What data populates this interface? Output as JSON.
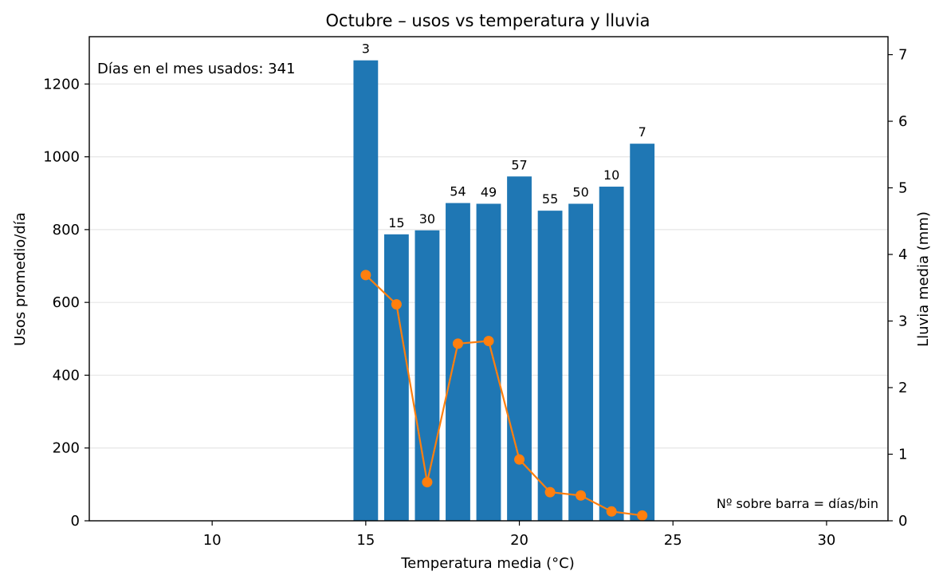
{
  "chart_data": {
    "type": "bar",
    "title": "Octubre – usos vs temperatura y lluvia",
    "xlabel": "Temperatura media (°C)",
    "ylabel": "Usos promedio/día",
    "y2label": "Lluvia media (mm)",
    "xlim": [
      6,
      32
    ],
    "ylim": [
      0,
      1330
    ],
    "y2lim": [
      0,
      7.27
    ],
    "xticks": [
      10,
      15,
      20,
      25,
      30
    ],
    "yticks": [
      0,
      200,
      400,
      600,
      800,
      1000,
      1200
    ],
    "y2ticks": [
      0,
      1,
      2,
      3,
      4,
      5,
      6,
      7
    ],
    "grid": "horizontal",
    "bar_color": "#1f77b4",
    "line_color": "#ff7f0e",
    "x": [
      15,
      16,
      17,
      18,
      19,
      20,
      21,
      22,
      23,
      24
    ],
    "series": [
      {
        "kind": "bar",
        "axis": "left",
        "values": [
          1265,
          787,
          798,
          873,
          871,
          946,
          852,
          871,
          918,
          1036
        ],
        "bar_labels": [
          "3",
          "15",
          "30",
          "54",
          "49",
          "57",
          "55",
          "50",
          "10",
          "7"
        ]
      },
      {
        "kind": "line",
        "axis": "right",
        "values": [
          3.69,
          3.25,
          0.58,
          2.66,
          2.7,
          0.92,
          0.43,
          0.38,
          0.14,
          0.08
        ]
      }
    ],
    "annotations": {
      "days_used": "Días en el mes usados: 341",
      "note": "Nº sobre barra = días/bin"
    }
  }
}
